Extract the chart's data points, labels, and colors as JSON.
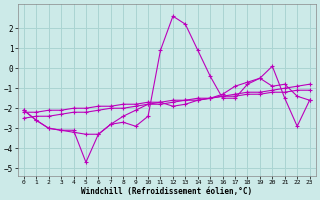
{
  "xlabel": "Windchill (Refroidissement éolien,°C)",
  "background_color": "#cceae8",
  "grid_color": "#aad4d2",
  "line_color": "#bb00bb",
  "xlim": [
    -0.5,
    23.5
  ],
  "ylim": [
    -5.4,
    3.2
  ],
  "yticks": [
    -5,
    -4,
    -3,
    -2,
    -1,
    0,
    1,
    2
  ],
  "xticks": [
    0,
    1,
    2,
    3,
    4,
    5,
    6,
    7,
    8,
    9,
    10,
    11,
    12,
    13,
    14,
    15,
    16,
    17,
    18,
    19,
    20,
    21,
    22,
    23
  ],
  "lines": [
    {
      "x": [
        0,
        1,
        2,
        3,
        4,
        5,
        6,
        7,
        8,
        9,
        10,
        11,
        12,
        13,
        14,
        15,
        16,
        17,
        18,
        19,
        20,
        21,
        22,
        23
      ],
      "y": [
        -2.1,
        -2.6,
        -3.0,
        -3.1,
        -3.1,
        -4.7,
        -3.3,
        -2.8,
        -2.7,
        -2.9,
        -2.4,
        0.9,
        2.6,
        2.2,
        0.9,
        -0.4,
        -1.5,
        -1.5,
        -0.8,
        -0.5,
        -0.9,
        -0.8,
        -1.4,
        -1.6
      ]
    },
    {
      "x": [
        0,
        1,
        2,
        3,
        4,
        5,
        6,
        7,
        8,
        9,
        10,
        11,
        12,
        13,
        14,
        15,
        16,
        17,
        18,
        19,
        20,
        21,
        22,
        23
      ],
      "y": [
        -2.2,
        -2.2,
        -2.1,
        -2.1,
        -2.0,
        -2.0,
        -1.9,
        -1.9,
        -1.8,
        -1.8,
        -1.7,
        -1.7,
        -1.6,
        -1.6,
        -1.5,
        -1.5,
        -1.4,
        -1.4,
        -1.3,
        -1.3,
        -1.2,
        -1.2,
        -1.1,
        -1.1
      ]
    },
    {
      "x": [
        0,
        1,
        2,
        3,
        4,
        5,
        6,
        7,
        8,
        9,
        10,
        11,
        12,
        13,
        14,
        15,
        16,
        17,
        18,
        19,
        20,
        21,
        22,
        23
      ],
      "y": [
        -2.5,
        -2.4,
        -2.4,
        -2.3,
        -2.2,
        -2.2,
        -2.1,
        -2.0,
        -2.0,
        -1.9,
        -1.8,
        -1.8,
        -1.7,
        -1.6,
        -1.6,
        -1.5,
        -1.4,
        -1.3,
        -1.2,
        -1.2,
        -1.1,
        -1.0,
        -0.9,
        -0.8
      ]
    },
    {
      "x": [
        0,
        1,
        2,
        3,
        4,
        5,
        6,
        7,
        8,
        9,
        10,
        11,
        12,
        13,
        14,
        15,
        16,
        17,
        18,
        19,
        20,
        21,
        22,
        23
      ],
      "y": [
        -2.1,
        -2.6,
        -3.0,
        -3.1,
        -3.2,
        -3.3,
        -3.3,
        -2.8,
        -2.4,
        -2.1,
        -1.8,
        -1.7,
        -1.9,
        -1.8,
        -1.6,
        -1.5,
        -1.3,
        -0.9,
        -0.7,
        -0.5,
        0.1,
        -1.5,
        -2.9,
        -1.6
      ]
    }
  ]
}
